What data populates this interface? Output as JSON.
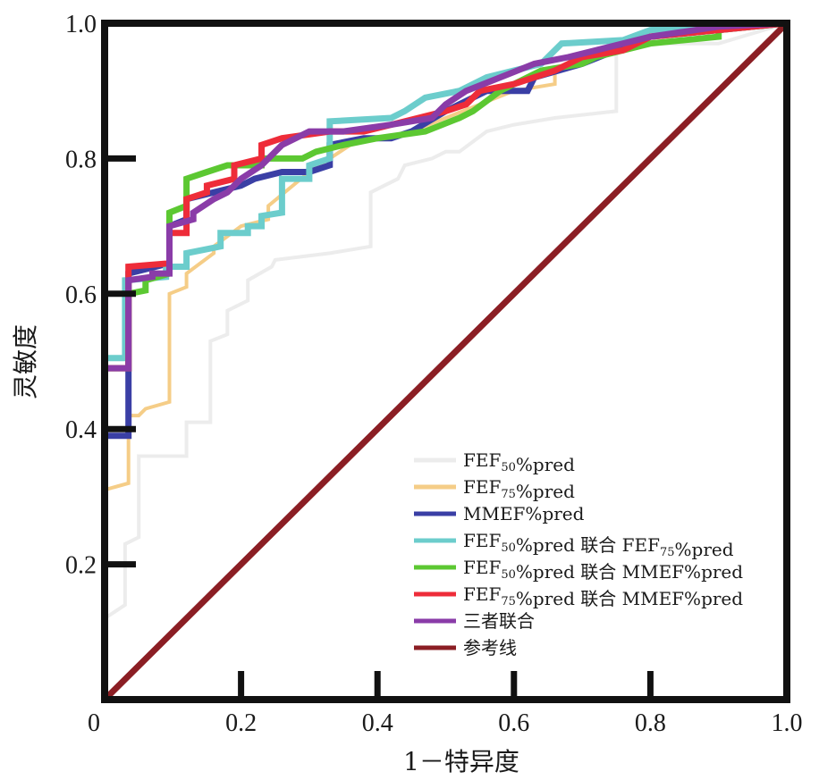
{
  "chart_data": {
    "type": "line",
    "title": "",
    "xlabel": "1－特异度",
    "ylabel": "灵敏度",
    "xlim": [
      0,
      1
    ],
    "ylim": [
      0,
      1
    ],
    "x_ticks": [
      {
        "value": 0,
        "label": "0"
      },
      {
        "value": 0.2,
        "label": "0.2"
      },
      {
        "value": 0.4,
        "label": "0.4"
      },
      {
        "value": 0.6,
        "label": "0.6"
      },
      {
        "value": 0.8,
        "label": "0.8"
      },
      {
        "value": 1.0,
        "label": "1.0"
      }
    ],
    "y_ticks": [
      {
        "value": 0.2,
        "label": "0.2"
      },
      {
        "value": 0.4,
        "label": "0.4"
      },
      {
        "value": 0.6,
        "label": "0.6"
      },
      {
        "value": 0.8,
        "label": "0.8"
      },
      {
        "value": 1.0,
        "label": "1.0"
      }
    ],
    "grid": false,
    "legend_position": "bottom-right",
    "series": [
      {
        "name": "FEF50%pred",
        "legend_main": "FEF",
        "legend_sub": "50",
        "legend_rest": "%pred",
        "color": "#ececec",
        "points": [
          [
            0,
            0
          ],
          [
            0,
            0.12
          ],
          [
            0.03,
            0.14
          ],
          [
            0.03,
            0.23
          ],
          [
            0.05,
            0.24
          ],
          [
            0.05,
            0.36
          ],
          [
            0.12,
            0.36
          ],
          [
            0.12,
            0.41
          ],
          [
            0.155,
            0.41
          ],
          [
            0.155,
            0.53
          ],
          [
            0.18,
            0.54
          ],
          [
            0.18,
            0.575
          ],
          [
            0.21,
            0.59
          ],
          [
            0.21,
            0.62
          ],
          [
            0.245,
            0.64
          ],
          [
            0.25,
            0.65
          ],
          [
            0.33,
            0.66
          ],
          [
            0.39,
            0.67
          ],
          [
            0.39,
            0.75
          ],
          [
            0.43,
            0.77
          ],
          [
            0.44,
            0.79
          ],
          [
            0.48,
            0.8
          ],
          [
            0.5,
            0.81
          ],
          [
            0.52,
            0.81
          ],
          [
            0.56,
            0.84
          ],
          [
            0.6,
            0.85
          ],
          [
            0.66,
            0.86
          ],
          [
            0.75,
            0.87
          ],
          [
            0.75,
            0.97
          ],
          [
            0.9,
            0.97
          ],
          [
            1,
            1
          ]
        ]
      },
      {
        "name": "FEF75%pred",
        "legend_main": "FEF",
        "legend_sub": "75",
        "legend_rest": "%pred",
        "color": "#f5cd87",
        "points": [
          [
            0,
            0
          ],
          [
            0,
            0.31
          ],
          [
            0.035,
            0.32
          ],
          [
            0.035,
            0.42
          ],
          [
            0.05,
            0.42
          ],
          [
            0.06,
            0.43
          ],
          [
            0.095,
            0.44
          ],
          [
            0.095,
            0.6
          ],
          [
            0.12,
            0.61
          ],
          [
            0.12,
            0.63
          ],
          [
            0.16,
            0.66
          ],
          [
            0.16,
            0.67
          ],
          [
            0.2,
            0.7
          ],
          [
            0.24,
            0.71
          ],
          [
            0.24,
            0.73
          ],
          [
            0.3,
            0.78
          ],
          [
            0.36,
            0.82
          ],
          [
            0.45,
            0.84
          ],
          [
            0.55,
            0.88
          ],
          [
            0.6,
            0.9
          ],
          [
            0.66,
            0.91
          ],
          [
            0.66,
            0.93
          ],
          [
            0.72,
            0.96
          ],
          [
            0.78,
            0.98
          ],
          [
            0.85,
            0.99
          ],
          [
            1,
            1
          ]
        ]
      },
      {
        "name": "MMEF%pred",
        "legend_main": "MMEF%pred",
        "legend_sub": "",
        "legend_rest": "",
        "color": "#3a3fa5",
        "points": [
          [
            0,
            0
          ],
          [
            0,
            0.39
          ],
          [
            0.035,
            0.39
          ],
          [
            0.035,
            0.63
          ],
          [
            0.095,
            0.645
          ],
          [
            0.095,
            0.7
          ],
          [
            0.12,
            0.71
          ],
          [
            0.12,
            0.74
          ],
          [
            0.16,
            0.75
          ],
          [
            0.2,
            0.76
          ],
          [
            0.22,
            0.77
          ],
          [
            0.26,
            0.78
          ],
          [
            0.3,
            0.78
          ],
          [
            0.33,
            0.79
          ],
          [
            0.33,
            0.82
          ],
          [
            0.38,
            0.83
          ],
          [
            0.42,
            0.83
          ],
          [
            0.45,
            0.84
          ],
          [
            0.5,
            0.87
          ],
          [
            0.52,
            0.88
          ],
          [
            0.56,
            0.9
          ],
          [
            0.62,
            0.9
          ],
          [
            0.63,
            0.92
          ],
          [
            0.7,
            0.94
          ],
          [
            0.75,
            0.96
          ],
          [
            0.8,
            0.98
          ],
          [
            0.9,
            0.99
          ],
          [
            1,
            1
          ]
        ]
      },
      {
        "name": "FEF50%pred 联合 FEF75%pred",
        "legend_main": "FEF",
        "legend_sub": "50",
        "legend_rest": "%pred 联合 FEF",
        "legend_sub2": "75",
        "legend_rest2": "%pred",
        "color": "#6ccdcc",
        "points": [
          [
            0,
            0
          ],
          [
            0,
            0.505
          ],
          [
            0.03,
            0.505
          ],
          [
            0.03,
            0.62
          ],
          [
            0.09,
            0.625
          ],
          [
            0.09,
            0.64
          ],
          [
            0.12,
            0.64
          ],
          [
            0.12,
            0.66
          ],
          [
            0.17,
            0.67
          ],
          [
            0.17,
            0.69
          ],
          [
            0.21,
            0.69
          ],
          [
            0.21,
            0.7
          ],
          [
            0.23,
            0.7
          ],
          [
            0.23,
            0.715
          ],
          [
            0.26,
            0.72
          ],
          [
            0.26,
            0.77
          ],
          [
            0.3,
            0.77
          ],
          [
            0.3,
            0.79
          ],
          [
            0.33,
            0.8
          ],
          [
            0.33,
            0.855
          ],
          [
            0.42,
            0.86
          ],
          [
            0.44,
            0.87
          ],
          [
            0.47,
            0.89
          ],
          [
            0.52,
            0.9
          ],
          [
            0.56,
            0.92
          ],
          [
            0.64,
            0.94
          ],
          [
            0.67,
            0.97
          ],
          [
            0.76,
            0.975
          ],
          [
            0.8,
            0.99
          ],
          [
            0.9,
            0.995
          ],
          [
            1,
            1
          ]
        ]
      },
      {
        "name": "FEF50%pred 联合 MMEF%pred",
        "legend_main": "FEF",
        "legend_sub": "50",
        "legend_rest": "%pred 联合 MMEF%pred",
        "color": "#5cc832",
        "points": [
          [
            0,
            0
          ],
          [
            0,
            0.49
          ],
          [
            0.035,
            0.49
          ],
          [
            0.035,
            0.6
          ],
          [
            0.06,
            0.605
          ],
          [
            0.06,
            0.62
          ],
          [
            0.095,
            0.63
          ],
          [
            0.095,
            0.72
          ],
          [
            0.12,
            0.73
          ],
          [
            0.12,
            0.77
          ],
          [
            0.15,
            0.78
          ],
          [
            0.18,
            0.79
          ],
          [
            0.23,
            0.79
          ],
          [
            0.23,
            0.8
          ],
          [
            0.29,
            0.8
          ],
          [
            0.31,
            0.81
          ],
          [
            0.35,
            0.82
          ],
          [
            0.4,
            0.83
          ],
          [
            0.47,
            0.84
          ],
          [
            0.52,
            0.86
          ],
          [
            0.54,
            0.87
          ],
          [
            0.58,
            0.9
          ],
          [
            0.64,
            0.93
          ],
          [
            0.7,
            0.94
          ],
          [
            0.72,
            0.95
          ],
          [
            0.8,
            0.97
          ],
          [
            0.9,
            0.98
          ],
          [
            0.9,
            0.99
          ],
          [
            1,
            1
          ]
        ]
      },
      {
        "name": "FEF75%pred 联合 MMEF%pred",
        "legend_main": "FEF",
        "legend_sub": "75",
        "legend_rest": "%pred 联合 MMEF%pred",
        "color": "#ee2c39",
        "points": [
          [
            0,
            0
          ],
          [
            0,
            0.49
          ],
          [
            0.035,
            0.49
          ],
          [
            0.035,
            0.64
          ],
          [
            0.095,
            0.645
          ],
          [
            0.095,
            0.69
          ],
          [
            0.12,
            0.69
          ],
          [
            0.12,
            0.74
          ],
          [
            0.15,
            0.75
          ],
          [
            0.15,
            0.76
          ],
          [
            0.19,
            0.77
          ],
          [
            0.19,
            0.79
          ],
          [
            0.23,
            0.8
          ],
          [
            0.23,
            0.82
          ],
          [
            0.26,
            0.83
          ],
          [
            0.33,
            0.84
          ],
          [
            0.38,
            0.84
          ],
          [
            0.42,
            0.85
          ],
          [
            0.46,
            0.86
          ],
          [
            0.5,
            0.87
          ],
          [
            0.53,
            0.88
          ],
          [
            0.55,
            0.9
          ],
          [
            0.6,
            0.91
          ],
          [
            0.66,
            0.93
          ],
          [
            0.7,
            0.95
          ],
          [
            0.76,
            0.96
          ],
          [
            0.8,
            0.98
          ],
          [
            0.9,
            0.99
          ],
          [
            1,
            1
          ]
        ]
      },
      {
        "name": "三者联合",
        "legend_main": "三者联合",
        "legend_sub": "",
        "legend_rest": "",
        "color": "#8a3ca8",
        "points": [
          [
            0,
            0
          ],
          [
            0,
            0.49
          ],
          [
            0.035,
            0.49
          ],
          [
            0.035,
            0.62
          ],
          [
            0.07,
            0.625
          ],
          [
            0.07,
            0.63
          ],
          [
            0.095,
            0.63
          ],
          [
            0.095,
            0.7
          ],
          [
            0.13,
            0.71
          ],
          [
            0.13,
            0.72
          ],
          [
            0.16,
            0.74
          ],
          [
            0.18,
            0.75
          ],
          [
            0.2,
            0.77
          ],
          [
            0.23,
            0.79
          ],
          [
            0.26,
            0.82
          ],
          [
            0.28,
            0.83
          ],
          [
            0.3,
            0.84
          ],
          [
            0.35,
            0.84
          ],
          [
            0.42,
            0.85
          ],
          [
            0.48,
            0.86
          ],
          [
            0.5,
            0.88
          ],
          [
            0.53,
            0.9
          ],
          [
            0.58,
            0.92
          ],
          [
            0.63,
            0.94
          ],
          [
            0.68,
            0.95
          ],
          [
            0.72,
            0.96
          ],
          [
            0.8,
            0.98
          ],
          [
            0.9,
            0.995
          ],
          [
            1,
            1
          ]
        ]
      },
      {
        "name": "参考线",
        "legend_main": "参考线",
        "legend_sub": "",
        "legend_rest": "",
        "color": "#8b1e24",
        "points": [
          [
            0,
            0
          ],
          [
            1,
            1
          ]
        ]
      }
    ]
  }
}
